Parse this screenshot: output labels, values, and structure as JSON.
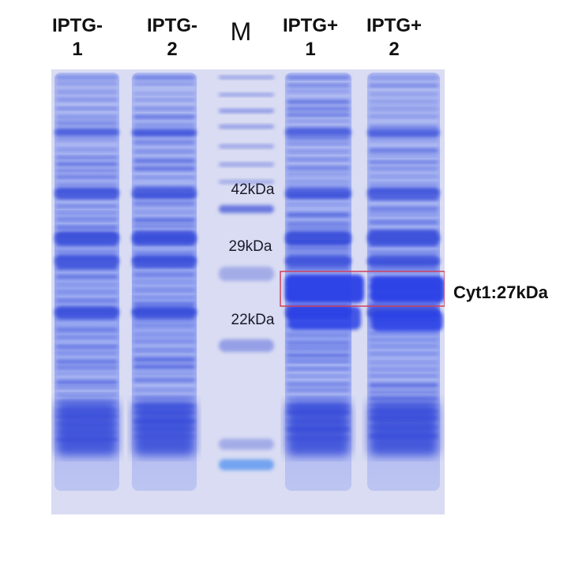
{
  "lanes": [
    {
      "line1": "IPTG-",
      "line2": "1"
    },
    {
      "line1": "IPTG-",
      "line2": "2"
    },
    {
      "marker": "M"
    },
    {
      "line1": "IPTG+",
      "line2": "1"
    },
    {
      "line1": "IPTG+",
      "line2": "2"
    }
  ],
  "markers": [
    "42kDa",
    "29kDa",
    "22kDa"
  ],
  "annotation": "Cyt1:27kDa",
  "colors": {
    "gel_background": "#d9dcf2",
    "band": "#3a4fe0",
    "highlight_box": "#d04060"
  }
}
